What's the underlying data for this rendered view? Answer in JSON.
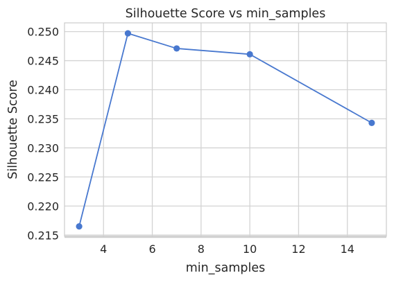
{
  "chart_data": {
    "type": "line",
    "title": "Silhouette Score vs min_samples",
    "xlabel": "min_samples",
    "ylabel": "Silhouette Score",
    "xlim": [
      2.4,
      15.6
    ],
    "ylim": [
      0.2148,
      0.2515
    ],
    "xticks": [
      4,
      6,
      8,
      10,
      12,
      14
    ],
    "xtick_labels": [
      "4",
      "6",
      "8",
      "10",
      "12",
      "14"
    ],
    "yticks": [
      0.215,
      0.22,
      0.225,
      0.23,
      0.235,
      0.24,
      0.245,
      0.25
    ],
    "ytick_labels": [
      "0.215",
      "0.220",
      "0.225",
      "0.230",
      "0.235",
      "0.240",
      "0.245",
      "0.250"
    ],
    "grid": true,
    "series": [
      {
        "color": "#4878cf",
        "marker": "circle",
        "x": [
          3,
          5,
          7,
          10,
          15
        ],
        "y": [
          0.2165,
          0.2497,
          0.2471,
          0.2461,
          0.2343
        ]
      }
    ]
  }
}
